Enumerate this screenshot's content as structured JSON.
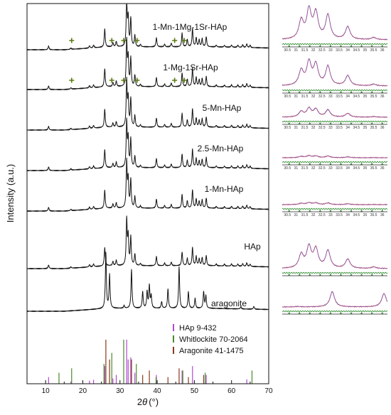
{
  "chart_data": {
    "type": "line",
    "title": "",
    "xlabel_prefix": "2",
    "xlabel_theta": "θ",
    "xlabel_unit": "(°)",
    "ylabel": "Intensity (a.u.)",
    "xlim": [
      5,
      70
    ],
    "xticks": [
      10,
      20,
      30,
      40,
      50,
      60,
      70
    ],
    "series": [
      {
        "name": "1-Mn-1Mg-1Sr-HAp",
        "whitlockite_marks": true
      },
      {
        "name": "1-Mg-1Sr-HAp",
        "whitlockite_marks": true
      },
      {
        "name": "5-Mn-HAp",
        "whitlockite_marks": false
      },
      {
        "name": "2.5-Mn-HAp",
        "whitlockite_marks": false
      },
      {
        "name": "1-Mn-HAp",
        "whitlockite_marks": false
      },
      {
        "name": "HAp",
        "whitlockite_marks": false
      },
      {
        "name": "aragonite",
        "whitlockite_marks": false
      }
    ],
    "hap_peaks": [
      {
        "x": 10.8,
        "i": 0.08
      },
      {
        "x": 16.8,
        "i": 0.03
      },
      {
        "x": 21.8,
        "i": 0.05
      },
      {
        "x": 22.9,
        "i": 0.06
      },
      {
        "x": 25.9,
        "i": 0.4
      },
      {
        "x": 28.1,
        "i": 0.09
      },
      {
        "x": 29.0,
        "i": 0.12
      },
      {
        "x": 31.8,
        "i": 1.0
      },
      {
        "x": 32.2,
        "i": 0.6
      },
      {
        "x": 32.9,
        "i": 0.62
      },
      {
        "x": 34.0,
        "i": 0.25
      },
      {
        "x": 35.5,
        "i": 0.05
      },
      {
        "x": 39.8,
        "i": 0.2
      },
      {
        "x": 42.0,
        "i": 0.06
      },
      {
        "x": 43.8,
        "i": 0.08
      },
      {
        "x": 46.7,
        "i": 0.3
      },
      {
        "x": 48.1,
        "i": 0.16
      },
      {
        "x": 49.5,
        "i": 0.4
      },
      {
        "x": 50.5,
        "i": 0.2
      },
      {
        "x": 51.3,
        "i": 0.15
      },
      {
        "x": 52.1,
        "i": 0.18
      },
      {
        "x": 53.2,
        "i": 0.22
      },
      {
        "x": 55.9,
        "i": 0.04
      },
      {
        "x": 58.1,
        "i": 0.04
      },
      {
        "x": 60.0,
        "i": 0.05
      },
      {
        "x": 61.7,
        "i": 0.05
      },
      {
        "x": 63.0,
        "i": 0.06
      },
      {
        "x": 64.1,
        "i": 0.08
      },
      {
        "x": 65.0,
        "i": 0.05
      }
    ],
    "whitlockite_marker_x": [
      17.0,
      27.8,
      31.0,
      34.6,
      44.7,
      47.3
    ],
    "aragonite_peaks": [
      {
        "x": 26.2,
        "i": 1.0
      },
      {
        "x": 27.2,
        "i": 0.6
      },
      {
        "x": 31.1,
        "i": 0.05
      },
      {
        "x": 33.1,
        "i": 0.7
      },
      {
        "x": 36.1,
        "i": 0.3
      },
      {
        "x": 37.3,
        "i": 0.3
      },
      {
        "x": 37.9,
        "i": 0.4
      },
      {
        "x": 38.4,
        "i": 0.22
      },
      {
        "x": 41.2,
        "i": 0.12
      },
      {
        "x": 42.9,
        "i": 0.35
      },
      {
        "x": 45.9,
        "i": 0.75
      },
      {
        "x": 48.4,
        "i": 0.3
      },
      {
        "x": 50.2,
        "i": 0.18
      },
      {
        "x": 52.5,
        "i": 0.3
      },
      {
        "x": 53.1,
        "i": 0.22
      },
      {
        "x": 62.5,
        "i": 0.04
      },
      {
        "x": 66.0,
        "i": 0.05
      }
    ],
    "reference_legend": [
      {
        "label": "HAp 9-432",
        "color": "#b04ad0"
      },
      {
        "label": "Whitlockite 70-2064",
        "color": "#4a8a2a"
      },
      {
        "label": "Aragonite 41-1475",
        "color": "#8a3a1a"
      }
    ],
    "reference_hap_sticks": [
      {
        "x": 10.8,
        "h": 0.15
      },
      {
        "x": 16.8,
        "h": 0.05
      },
      {
        "x": 21.8,
        "h": 0.07
      },
      {
        "x": 22.9,
        "h": 0.09
      },
      {
        "x": 25.9,
        "h": 0.4
      },
      {
        "x": 28.1,
        "h": 0.12
      },
      {
        "x": 29.0,
        "h": 0.2
      },
      {
        "x": 31.8,
        "h": 1.0
      },
      {
        "x": 32.2,
        "h": 0.55
      },
      {
        "x": 32.9,
        "h": 0.6
      },
      {
        "x": 34.0,
        "h": 0.25
      },
      {
        "x": 39.8,
        "h": 0.2
      },
      {
        "x": 46.7,
        "h": 0.3
      },
      {
        "x": 49.5,
        "h": 0.4
      },
      {
        "x": 53.2,
        "h": 0.2
      },
      {
        "x": 64.1,
        "h": 0.1
      }
    ],
    "reference_whitlockite_sticks": [
      {
        "x": 13.6,
        "h": 0.25
      },
      {
        "x": 17.0,
        "h": 0.35
      },
      {
        "x": 25.7,
        "h": 0.45
      },
      {
        "x": 27.8,
        "h": 0.7
      },
      {
        "x": 31.0,
        "h": 1.0
      },
      {
        "x": 34.4,
        "h": 0.45
      },
      {
        "x": 39.7,
        "h": 0.15
      },
      {
        "x": 46.9,
        "h": 0.3
      },
      {
        "x": 52.9,
        "h": 0.25
      },
      {
        "x": 65.5,
        "h": 0.3
      }
    ],
    "reference_aragonite_sticks": [
      {
        "x": 26.2,
        "h": 1.0
      },
      {
        "x": 27.2,
        "h": 0.55
      },
      {
        "x": 33.1,
        "h": 0.55
      },
      {
        "x": 36.1,
        "h": 0.2
      },
      {
        "x": 37.9,
        "h": 0.3
      },
      {
        "x": 42.9,
        "h": 0.15
      },
      {
        "x": 45.9,
        "h": 0.35
      },
      {
        "x": 48.4,
        "h": 0.15
      },
      {
        "x": 52.5,
        "h": 0.2
      }
    ],
    "inset_tick_labels": [
      "30.5",
      "31",
      "31.5",
      "32",
      "32.5",
      "33",
      "33.5",
      "34",
      "34.5",
      "35",
      "35.5",
      "36"
    ],
    "inset_xlim": [
      30.2,
      36.3
    ],
    "colors": {
      "curve": "#111111",
      "whitlockite_marker": "#5a7a12",
      "inset_observed": "#e05a5a",
      "inset_calculated": "#4a4ad0",
      "inset_difference": "#2a8a2a"
    }
  }
}
